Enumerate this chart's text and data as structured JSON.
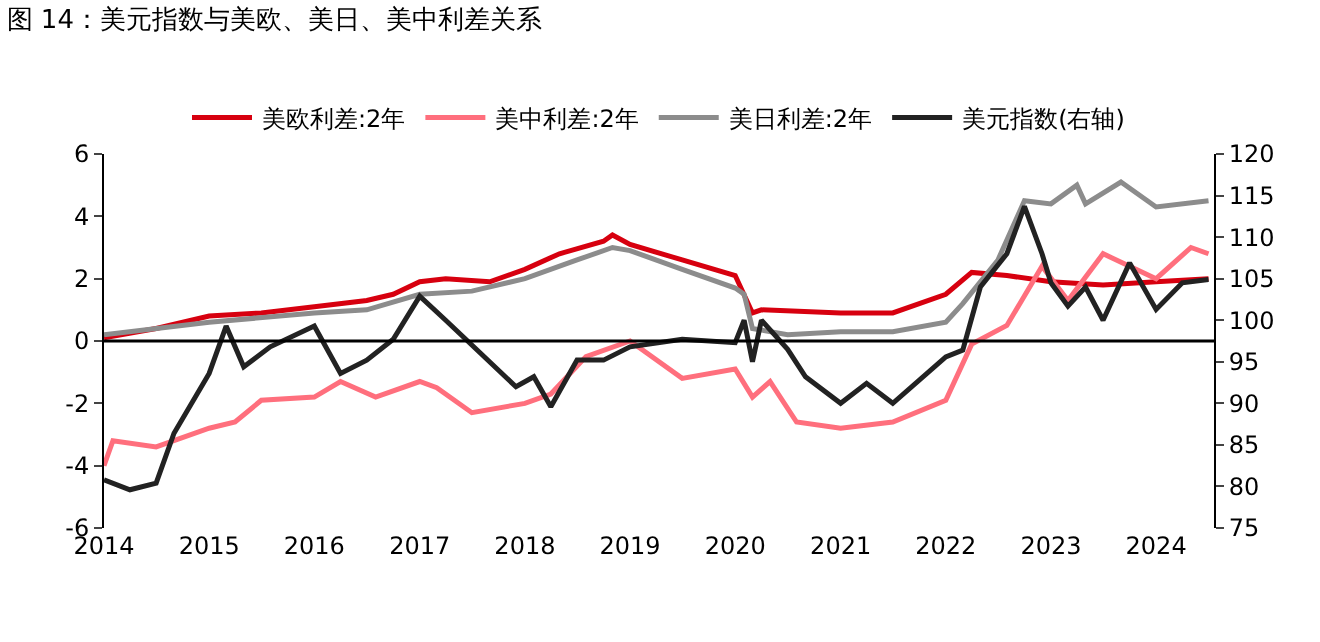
{
  "chart_data": {
    "type": "line",
    "title": "图 14：美元指数与美欧、美日、美中利差关系",
    "xlim": [
      "2014-01",
      "2024-07-20"
    ],
    "xticks": [
      "2014",
      "2015",
      "2016",
      "2017",
      "2018",
      "2019",
      "2020",
      "2021",
      "2022",
      "2023",
      "2024"
    ],
    "ylim": [
      -6,
      6
    ],
    "yticks": [
      -6,
      -4,
      -2,
      0,
      2,
      4,
      6
    ],
    "y2lim": [
      75,
      120
    ],
    "y2ticks": [
      75,
      80,
      85,
      90,
      95,
      100,
      105,
      110,
      115,
      120
    ],
    "ref_lines": [
      {
        "axis": "y",
        "value": 0,
        "color": "#000000"
      }
    ],
    "legend": "top",
    "line_style": "solid",
    "marker": "none",
    "series": [
      {
        "name": "美欧利差:2年",
        "color": "#d7000f",
        "x": [
          "2014-01",
          "2014-07",
          "2015-01",
          "2015-07",
          "2016-01",
          "2016-07",
          "2016-10",
          "2017-01",
          "2017-04",
          "2017-09",
          "2018-01",
          "2018-05",
          "2018-10",
          "2018-11",
          "2019-01",
          "2019-07",
          "2020-01",
          "2020-03",
          "2020-04",
          "2021-01",
          "2021-07",
          "2022-01",
          "2022-04",
          "2022-08",
          "2023-01",
          "2023-07",
          "2024-01",
          "2024-07"
        ],
        "values": [
          0.1,
          0.4,
          0.8,
          0.9,
          1.1,
          1.3,
          1.5,
          1.9,
          2.0,
          1.9,
          2.3,
          2.8,
          3.2,
          3.4,
          3.1,
          2.6,
          2.1,
          0.9,
          1.0,
          0.9,
          0.9,
          1.5,
          2.2,
          2.1,
          1.9,
          1.8,
          1.9,
          2.0
        ]
      },
      {
        "name": "美中利差:2年",
        "color": "#ff6f7d",
        "x": [
          "2014-01",
          "2014-02",
          "2014-07",
          "2015-01",
          "2015-04",
          "2015-07",
          "2016-01",
          "2016-04",
          "2016-08",
          "2017-01",
          "2017-03",
          "2017-07",
          "2018-01",
          "2018-04",
          "2018-08",
          "2019-01",
          "2019-07",
          "2020-01",
          "2020-03",
          "2020-05",
          "2020-08",
          "2021-01",
          "2021-07",
          "2022-01",
          "2022-04",
          "2022-08",
          "2022-12",
          "2023-03",
          "2023-07",
          "2024-01",
          "2024-05",
          "2024-07"
        ],
        "values": [
          -4.0,
          -3.2,
          -3.4,
          -2.8,
          -2.6,
          -1.9,
          -1.8,
          -1.3,
          -1.8,
          -1.3,
          -1.5,
          -2.3,
          -2.0,
          -1.7,
          -0.5,
          0.0,
          -1.2,
          -0.9,
          -1.8,
          -1.3,
          -2.6,
          -2.8,
          -2.6,
          -1.9,
          -0.1,
          0.5,
          2.4,
          1.3,
          2.8,
          2.0,
          3.0,
          2.8
        ]
      },
      {
        "name": "美日利差:2年",
        "color": "#8c8c8c",
        "x": [
          "2014-01",
          "2015-01",
          "2016-01",
          "2016-07",
          "2017-01",
          "2017-07",
          "2018-01",
          "2018-07",
          "2018-11",
          "2019-01",
          "2019-07",
          "2020-01",
          "2020-02",
          "2020-03",
          "2020-07",
          "2021-01",
          "2021-07",
          "2022-01",
          "2022-03",
          "2022-07",
          "2022-10",
          "2023-01",
          "2023-04",
          "2023-05",
          "2023-09",
          "2024-01",
          "2024-07"
        ],
        "values": [
          0.2,
          0.6,
          0.9,
          1.0,
          1.5,
          1.6,
          2.0,
          2.6,
          3.0,
          2.9,
          2.3,
          1.7,
          1.5,
          0.4,
          0.2,
          0.3,
          0.3,
          0.6,
          1.2,
          2.6,
          4.5,
          4.4,
          5.0,
          4.4,
          5.1,
          4.3,
          4.5
        ]
      },
      {
        "name": "美元指数(右轴)",
        "color": "#222222",
        "axis": "y2",
        "x": [
          "2014-01",
          "2014-04",
          "2014-07",
          "2014-09",
          "2015-01",
          "2015-03",
          "2015-05",
          "2015-08",
          "2016-01",
          "2016-04",
          "2016-07",
          "2016-10",
          "2017-01",
          "2017-04",
          "2017-08",
          "2017-12",
          "2018-02",
          "2018-04",
          "2018-07",
          "2018-10",
          "2019-01",
          "2019-07",
          "2020-01",
          "2020-02",
          "2020-03",
          "2020-04",
          "2020-07",
          "2020-09",
          "2021-01",
          "2021-04",
          "2021-07",
          "2022-01",
          "2022-03",
          "2022-05",
          "2022-08",
          "2022-10",
          "2022-12",
          "2023-01",
          "2023-03",
          "2023-05",
          "2023-07",
          "2023-10",
          "2024-01",
          "2024-04",
          "2024-07"
        ],
        "values": [
          80.8,
          79.6,
          80.4,
          86.4,
          93.6,
          99.3,
          94.4,
          96.8,
          99.3,
          93.6,
          95.2,
          97.7,
          102.9,
          100.0,
          96.0,
          92.0,
          93.2,
          89.6,
          95.2,
          95.2,
          96.8,
          97.7,
          97.3,
          100.0,
          95.0,
          100.0,
          96.5,
          93.2,
          90.0,
          92.4,
          90.0,
          95.6,
          96.4,
          104.0,
          108.0,
          113.7,
          108.0,
          104.5,
          101.7,
          104.0,
          100.0,
          106.9,
          101.3,
          104.5,
          104.9
        ]
      }
    ]
  }
}
